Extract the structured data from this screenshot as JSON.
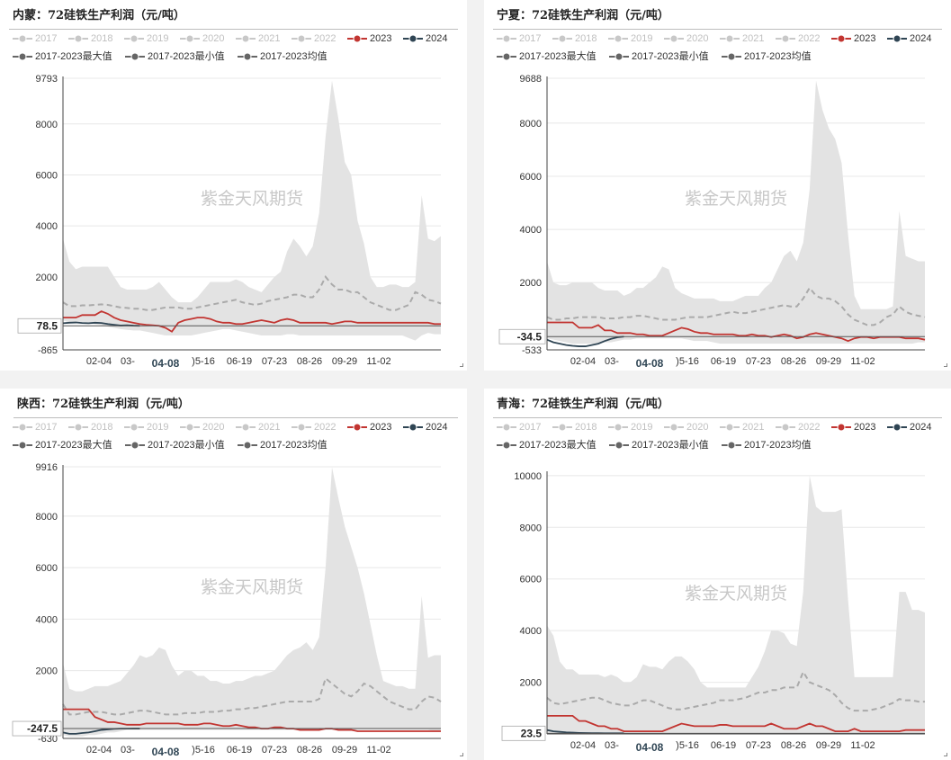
{
  "legend": [
    {
      "name": "2017",
      "color": "#c8c8c8"
    },
    {
      "name": "2018",
      "color": "#c8c8c8"
    },
    {
      "name": "2019",
      "color": "#c8c8c8"
    },
    {
      "name": "2020",
      "color": "#c8c8c8"
    },
    {
      "name": "2021",
      "color": "#c8c8c8"
    },
    {
      "name": "2022",
      "color": "#c8c8c8"
    },
    {
      "name": "2023",
      "color": "#c23531"
    },
    {
      "name": "2024",
      "color": "#2f4554"
    },
    {
      "name": "2017-2023最大值",
      "color": "#666666"
    },
    {
      "name": "2017-2023最小值",
      "color": "#666666"
    },
    {
      "name": "2017-2023均值",
      "color": "#666666"
    }
  ],
  "watermark": "紫金天风期货",
  "colors": {
    "band": "#e3e3e3",
    "avg": "#aaaaaa",
    "y2023": "#c23531",
    "y2024": "#2f4554"
  },
  "chart_data": [
    {
      "type": "area",
      "title": "内蒙：72硅铁生产利润（元/吨）",
      "x_ticks": [
        "02-04",
        "03-",
        "04-08",
        "05-16",
        "06-19",
        "07-23",
        "08-26",
        "09-29",
        "11-02"
      ],
      "x_tick_labels": [
        "02-04",
        "03-",
        "04-08",
        ")5-16",
        "06-19",
        "07-23",
        "08-26",
        "09-29",
        "11-02"
      ],
      "hover_date": "04-08",
      "y_ticks": [
        9793,
        8000,
        6000,
        4000,
        2000,
        -865
      ],
      "ylim": [
        -865,
        9793
      ],
      "current_value": "78.5",
      "current": 78.5,
      "max": [
        3500,
        2600,
        2300,
        2400,
        2400,
        2400,
        2400,
        2400,
        2000,
        1600,
        1500,
        1500,
        1500,
        1500,
        1600,
        1800,
        1500,
        1200,
        1000,
        1000,
        1000,
        1200,
        1500,
        1800,
        1800,
        1800,
        1800,
        1900,
        1800,
        1600,
        1500,
        1400,
        1700,
        2000,
        2200,
        3000,
        3500,
        3200,
        2800,
        3200,
        4500,
        7500,
        9700,
        8200,
        6500,
        6000,
        4200,
        3300,
        2000,
        1600,
        1600,
        1700,
        1700,
        1600,
        1600,
        1800,
        5200,
        3500,
        3400,
        3600
      ],
      "min": [
        300,
        200,
        200,
        200,
        200,
        150,
        100,
        50,
        0,
        -50,
        -80,
        -100,
        -100,
        -150,
        -200,
        -250,
        -300,
        -300,
        -300,
        -300,
        -300,
        -250,
        -200,
        -150,
        -100,
        -50,
        -50,
        -100,
        -150,
        -200,
        -250,
        -300,
        -300,
        -300,
        -300,
        -250,
        -250,
        -300,
        -300,
        -300,
        -300,
        -300,
        -300,
        -300,
        -300,
        -300,
        -300,
        -300,
        -300,
        -300,
        -300,
        -300,
        -300,
        -300,
        -400,
        -500,
        -300,
        -200,
        -250,
        -250
      ],
      "avg": [
        1000,
        850,
        850,
        880,
        880,
        900,
        920,
        900,
        850,
        800,
        780,
        750,
        750,
        700,
        700,
        750,
        800,
        800,
        800,
        750,
        750,
        800,
        850,
        900,
        950,
        1000,
        1050,
        1100,
        1000,
        950,
        900,
        950,
        1050,
        1100,
        1150,
        1200,
        1300,
        1300,
        1200,
        1200,
        1500,
        2000,
        1700,
        1500,
        1500,
        1400,
        1400,
        1200,
        1000,
        900,
        800,
        700,
        700,
        800,
        900,
        1400,
        1300,
        1100,
        1050,
        950
      ],
      "s2023": [
        400,
        400,
        400,
        500,
        500,
        500,
        650,
        550,
        400,
        300,
        250,
        200,
        150,
        120,
        100,
        80,
        0,
        -150,
        200,
        300,
        350,
        400,
        400,
        350,
        250,
        200,
        200,
        150,
        150,
        200,
        250,
        300,
        250,
        200,
        300,
        350,
        300,
        200,
        200,
        200,
        200,
        200,
        150,
        200,
        250,
        250,
        200,
        200,
        200,
        200,
        200,
        200,
        200,
        200,
        200,
        200,
        200,
        200,
        150,
        150
      ],
      "s2024": [
        180,
        200,
        210,
        190,
        180,
        200,
        190,
        150,
        120,
        90,
        100,
        85,
        78.5
      ]
    },
    {
      "type": "area",
      "title": "宁夏：72硅铁生产利润（元/吨）",
      "x_ticks": [
        "02-04",
        "03-",
        "04-08",
        "05-16",
        "06-19",
        "07-23",
        "08-26",
        "09-29",
        "11-02"
      ],
      "x_tick_labels": [
        "02-04",
        "03-",
        "04-08",
        ")5-16",
        "06-19",
        "07-23",
        "08-26",
        "09-29",
        "11-02"
      ],
      "hover_date": "04-08",
      "y_ticks": [
        9688,
        8000,
        6000,
        4000,
        2000,
        -533
      ],
      "ylim": [
        -533,
        9688
      ],
      "current_value": "-34.5",
      "current": -34.5,
      "max": [
        2800,
        2000,
        1900,
        1900,
        2000,
        2000,
        2000,
        2000,
        1800,
        1700,
        1700,
        1700,
        1500,
        1600,
        1800,
        1800,
        2000,
        2200,
        2600,
        2500,
        1800,
        1600,
        1500,
        1400,
        1400,
        1400,
        1400,
        1300,
        1300,
        1300,
        1400,
        1500,
        1500,
        1500,
        1800,
        2000,
        2500,
        3000,
        3200,
        2800,
        3500,
        5500,
        9600,
        8500,
        7800,
        7400,
        6500,
        3800,
        1500,
        1000,
        1000,
        1000,
        1000,
        1000,
        1100,
        4700,
        3000,
        2900,
        2800,
        2800
      ],
      "min": [
        -100,
        -150,
        -200,
        -250,
        -300,
        -300,
        -300,
        -300,
        -300,
        -250,
        -250,
        -200,
        -150,
        -150,
        -100,
        -100,
        -100,
        -100,
        -100,
        -100,
        -100,
        -100,
        -150,
        -200,
        -200,
        -200,
        -250,
        -300,
        -300,
        -300,
        -300,
        -300,
        -300,
        -300,
        -300,
        -300,
        -300,
        -300,
        -300,
        -300,
        -300,
        -300,
        -300,
        -300,
        -300,
        -300,
        -300,
        -300,
        -300,
        -300,
        -300,
        -300,
        -300,
        -300,
        -300,
        -300,
        -300,
        -300,
        -250,
        -250
      ],
      "avg": [
        700,
        600,
        600,
        650,
        650,
        700,
        700,
        700,
        700,
        650,
        650,
        650,
        700,
        700,
        750,
        750,
        700,
        650,
        600,
        600,
        600,
        650,
        700,
        700,
        700,
        700,
        750,
        800,
        850,
        900,
        850,
        850,
        900,
        950,
        1000,
        1050,
        1100,
        1150,
        1100,
        1100,
        1400,
        1800,
        1500,
        1400,
        1400,
        1300,
        1100,
        800,
        600,
        500,
        400,
        400,
        500,
        700,
        800,
        1100,
        900,
        800,
        750,
        700
      ],
      "s2023": [
        500,
        500,
        500,
        500,
        500,
        300,
        300,
        300,
        400,
        200,
        200,
        100,
        100,
        100,
        50,
        50,
        0,
        0,
        0,
        100,
        200,
        300,
        250,
        150,
        100,
        100,
        50,
        50,
        50,
        50,
        0,
        0,
        50,
        0,
        0,
        -50,
        0,
        50,
        0,
        -100,
        -50,
        50,
        100,
        50,
        0,
        -50,
        -100,
        -200,
        -100,
        -50,
        -50,
        -100,
        -50,
        -50,
        -50,
        -50,
        -100,
        -100,
        -100,
        -150
      ],
      "s2024": [
        -150,
        -250,
        -300,
        -350,
        -380,
        -400,
        -400,
        -350,
        -300,
        -200,
        -120,
        -60,
        -34.5
      ]
    },
    {
      "type": "area",
      "title": "陕西：72硅铁生产利润（元/吨）",
      "x_ticks": [
        "02-04",
        "03-",
        "04-08",
        "05-16",
        "06-19",
        "07-23",
        "08-26",
        "09-29",
        "11-02"
      ],
      "x_tick_labels": [
        "02-04",
        "03-",
        "04-08",
        ")5-16",
        "06-19",
        "07-23",
        "08-26",
        "09-29",
        "11-02"
      ],
      "hover_date": "04-08",
      "y_ticks": [
        9916,
        8000,
        6000,
        4000,
        2000,
        -630
      ],
      "ylim": [
        -630,
        9916
      ],
      "current_value": "-247.5",
      "current": -247.5,
      "max": [
        2300,
        1300,
        1200,
        1200,
        1300,
        1400,
        1400,
        1400,
        1500,
        1600,
        1900,
        2200,
        2600,
        2500,
        2600,
        2900,
        2800,
        2200,
        1800,
        2000,
        2000,
        1800,
        1800,
        1600,
        1600,
        1500,
        1500,
        1600,
        1600,
        1700,
        1800,
        1800,
        1900,
        2000,
        2300,
        2600,
        2800,
        2900,
        3100,
        2800,
        3300,
        6000,
        9900,
        8700,
        7600,
        6800,
        6000,
        5000,
        3800,
        2600,
        1600,
        1500,
        1400,
        1400,
        1300,
        1300,
        4900,
        2500,
        2600,
        2600
      ],
      "min": [
        -500,
        -550,
        -550,
        -550,
        -500,
        -500,
        -450,
        -400,
        -400,
        -350,
        -300,
        -300,
        -300,
        -300,
        -300,
        -300,
        -300,
        -300,
        -300,
        -300,
        -300,
        -300,
        -300,
        -300,
        -300,
        -300,
        -300,
        -300,
        -300,
        -300,
        -300,
        -300,
        -300,
        -300,
        -300,
        -300,
        -300,
        -300,
        -300,
        -300,
        -300,
        -300,
        -300,
        -300,
        -300,
        -300,
        -300,
        -300,
        -300,
        -300,
        -300,
        -300,
        -300,
        -300,
        -300,
        -300,
        -300,
        -300,
        -350,
        -350
      ],
      "avg": [
        700,
        300,
        300,
        350,
        400,
        400,
        400,
        350,
        300,
        300,
        350,
        400,
        450,
        450,
        400,
        350,
        300,
        300,
        300,
        350,
        350,
        350,
        400,
        400,
        400,
        450,
        450,
        500,
        500,
        550,
        550,
        600,
        650,
        700,
        750,
        800,
        800,
        800,
        800,
        800,
        900,
        1700,
        1500,
        1300,
        1100,
        1000,
        1200,
        1500,
        1400,
        1200,
        1000,
        800,
        700,
        600,
        500,
        500,
        800,
        1000,
        950,
        800
      ],
      "s2023": [
        500,
        500,
        500,
        500,
        500,
        200,
        100,
        0,
        0,
        -50,
        -100,
        -100,
        -100,
        -50,
        -50,
        -50,
        -50,
        -50,
        -50,
        -100,
        -100,
        -100,
        -50,
        -50,
        -100,
        -150,
        -150,
        -100,
        -150,
        -200,
        -200,
        -250,
        -250,
        -200,
        -200,
        -250,
        -250,
        -300,
        -300,
        -300,
        -300,
        -250,
        -250,
        -300,
        -300,
        -300,
        -350,
        -350,
        -350,
        -350,
        -350,
        -350,
        -350,
        -350,
        -350,
        -350,
        -350,
        -350,
        -350,
        -350
      ],
      "s2024": [
        -400,
        -450,
        -450,
        -420,
        -400,
        -350,
        -300,
        -280,
        -260,
        -250,
        -250,
        -248,
        -247.5
      ]
    },
    {
      "type": "area",
      "title": "青海：72硅铁生产利润（元/吨）",
      "x_ticks": [
        "02-04",
        "03-",
        "04-08",
        "05-16",
        "06-19",
        "07-23",
        "08-26",
        "09-29",
        "11-02"
      ],
      "x_tick_labels": [
        "02-04",
        "03-",
        "04-08",
        ")5-16",
        "06-19",
        "07-23",
        "08-26",
        "09-29",
        "11-02"
      ],
      "hover_date": "04-08",
      "y_ticks": [
        10000,
        8000,
        6000,
        4000,
        2000
      ],
      "ylim": [
        0,
        10100
      ],
      "current_value": "23.5",
      "current": 23.5,
      "max": [
        4200,
        3800,
        2800,
        2500,
        2500,
        2300,
        2300,
        2300,
        2300,
        2200,
        2300,
        2200,
        2000,
        2000,
        2200,
        2700,
        2600,
        2600,
        2500,
        2800,
        3000,
        3000,
        2800,
        2500,
        2000,
        1800,
        1800,
        1800,
        1800,
        1800,
        1800,
        1800,
        2200,
        2600,
        3200,
        4000,
        4000,
        3900,
        3500,
        3400,
        5500,
        10000,
        8800,
        8600,
        8600,
        8600,
        8700,
        5200,
        2200,
        2200,
        2200,
        2200,
        2200,
        2200,
        2200,
        5500,
        5500,
        4800,
        4800,
        4700
      ],
      "min": [
        0,
        0,
        0,
        0,
        0,
        0,
        0,
        0,
        0,
        0,
        0,
        0,
        0,
        0,
        0,
        0,
        0,
        0,
        0,
        0,
        0,
        0,
        0,
        0,
        0,
        0,
        0,
        0,
        0,
        0,
        0,
        0,
        0,
        0,
        0,
        0,
        0,
        0,
        0,
        0,
        0,
        0,
        0,
        0,
        0,
        0,
        0,
        0,
        0,
        0,
        0,
        0,
        0,
        0,
        0,
        0,
        0,
        0,
        0,
        0
      ],
      "avg": [
        1400,
        1200,
        1150,
        1200,
        1250,
        1300,
        1350,
        1400,
        1400,
        1300,
        1200,
        1150,
        1100,
        1100,
        1200,
        1300,
        1300,
        1200,
        1100,
        1000,
        950,
        950,
        1000,
        1050,
        1100,
        1150,
        1200,
        1300,
        1300,
        1300,
        1350,
        1400,
        1500,
        1600,
        1600,
        1700,
        1700,
        1800,
        1800,
        1800,
        2400,
        2000,
        1900,
        1800,
        1700,
        1500,
        1200,
        1000,
        900,
        900,
        900,
        950,
        1000,
        1100,
        1200,
        1350,
        1300,
        1300,
        1250,
        1250
      ],
      "s2023": [
        700,
        700,
        700,
        700,
        700,
        500,
        500,
        400,
        300,
        300,
        200,
        200,
        100,
        100,
        100,
        100,
        100,
        100,
        100,
        200,
        300,
        400,
        350,
        300,
        300,
        300,
        300,
        350,
        350,
        300,
        300,
        300,
        300,
        300,
        300,
        400,
        300,
        200,
        200,
        200,
        300,
        400,
        300,
        300,
        200,
        100,
        100,
        100,
        200,
        100,
        100,
        100,
        100,
        100,
        100,
        100,
        150,
        150,
        150,
        150
      ],
      "s2024": [
        150,
        100,
        80,
        60,
        50,
        40,
        35,
        30,
        28,
        25,
        24,
        23.5,
        23.5
      ]
    }
  ]
}
